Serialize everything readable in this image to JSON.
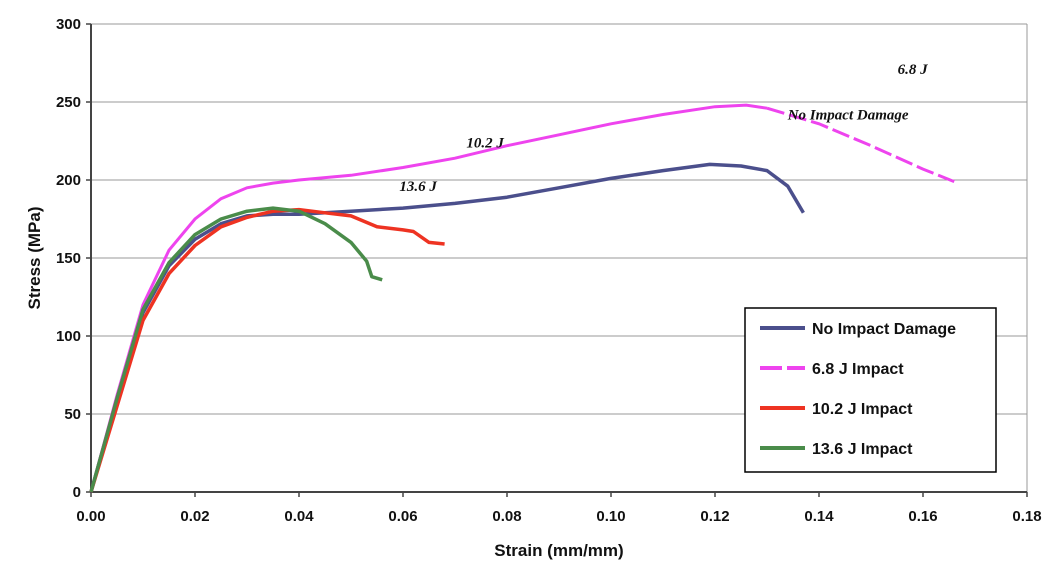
{
  "chart_data": {
    "type": "line",
    "title": "",
    "xlabel": "Strain (mm/mm)",
    "ylabel": "Stress (MPa)",
    "xlim": [
      0,
      0.18
    ],
    "ylim": [
      0,
      300
    ],
    "xticks": [
      "0.00",
      "0.02",
      "0.04",
      "0.06",
      "0.08",
      "0.10",
      "0.12",
      "0.14",
      "0.16",
      "0.18"
    ],
    "yticks": [
      "0",
      "50",
      "100",
      "150",
      "200",
      "250",
      "300"
    ],
    "grid": "horizontal",
    "legend_position": "bottom-right",
    "series": [
      {
        "name": "No Impact Damage",
        "color": "#4b4f8c",
        "style": "solid",
        "x": [
          0,
          0.005,
          0.01,
          0.015,
          0.02,
          0.025,
          0.03,
          0.035,
          0.04,
          0.05,
          0.06,
          0.07,
          0.08,
          0.09,
          0.1,
          0.11,
          0.119,
          0.125,
          0.13,
          0.134,
          0.137
        ],
        "y": [
          0,
          60,
          115,
          145,
          162,
          172,
          177,
          178,
          178,
          180,
          182,
          185,
          189,
          195,
          201,
          206,
          210,
          209,
          206,
          196,
          179
        ]
      },
      {
        "name": "6.8 J Impact",
        "color": "#ee44ee",
        "style": "dash-tail",
        "dash_from": 0.13,
        "x": [
          0,
          0.005,
          0.01,
          0.015,
          0.02,
          0.025,
          0.03,
          0.035,
          0.04,
          0.05,
          0.06,
          0.07,
          0.08,
          0.09,
          0.1,
          0.11,
          0.12,
          0.126,
          0.13,
          0.14,
          0.15,
          0.16,
          0.166
        ],
        "y": [
          0,
          62,
          120,
          155,
          175,
          188,
          195,
          198,
          200,
          203,
          208,
          214,
          222,
          229,
          236,
          242,
          247,
          248,
          246,
          236,
          222,
          207,
          199
        ]
      },
      {
        "name": "10.2 J Impact",
        "color": "#ee3322",
        "style": "solid",
        "x": [
          0,
          0.005,
          0.01,
          0.015,
          0.02,
          0.025,
          0.03,
          0.035,
          0.04,
          0.045,
          0.05,
          0.055,
          0.06,
          0.062,
          0.065,
          0.068
        ],
        "y": [
          0,
          55,
          110,
          140,
          158,
          170,
          176,
          180,
          181,
          179,
          177,
          170,
          168,
          167,
          160,
          159
        ]
      },
      {
        "name": "13.6 J Impact",
        "color": "#4a8c4a",
        "style": "solid",
        "x": [
          0,
          0.005,
          0.01,
          0.015,
          0.02,
          0.025,
          0.03,
          0.035,
          0.04,
          0.045,
          0.05,
          0.053,
          0.054,
          0.056
        ],
        "y": [
          0,
          60,
          117,
          147,
          165,
          175,
          180,
          182,
          180,
          172,
          160,
          148,
          138,
          136
        ]
      }
    ],
    "annotations": [
      {
        "text": "6.8 J",
        "x": 0.158,
        "y": 271
      },
      {
        "text": "No Impact Damage",
        "x": 0.1456,
        "y": 242
      },
      {
        "text": "10.2 J",
        "x": 0.0758,
        "y": 224
      },
      {
        "text": "13.6 J",
        "x": 0.0629,
        "y": 196
      }
    ]
  }
}
